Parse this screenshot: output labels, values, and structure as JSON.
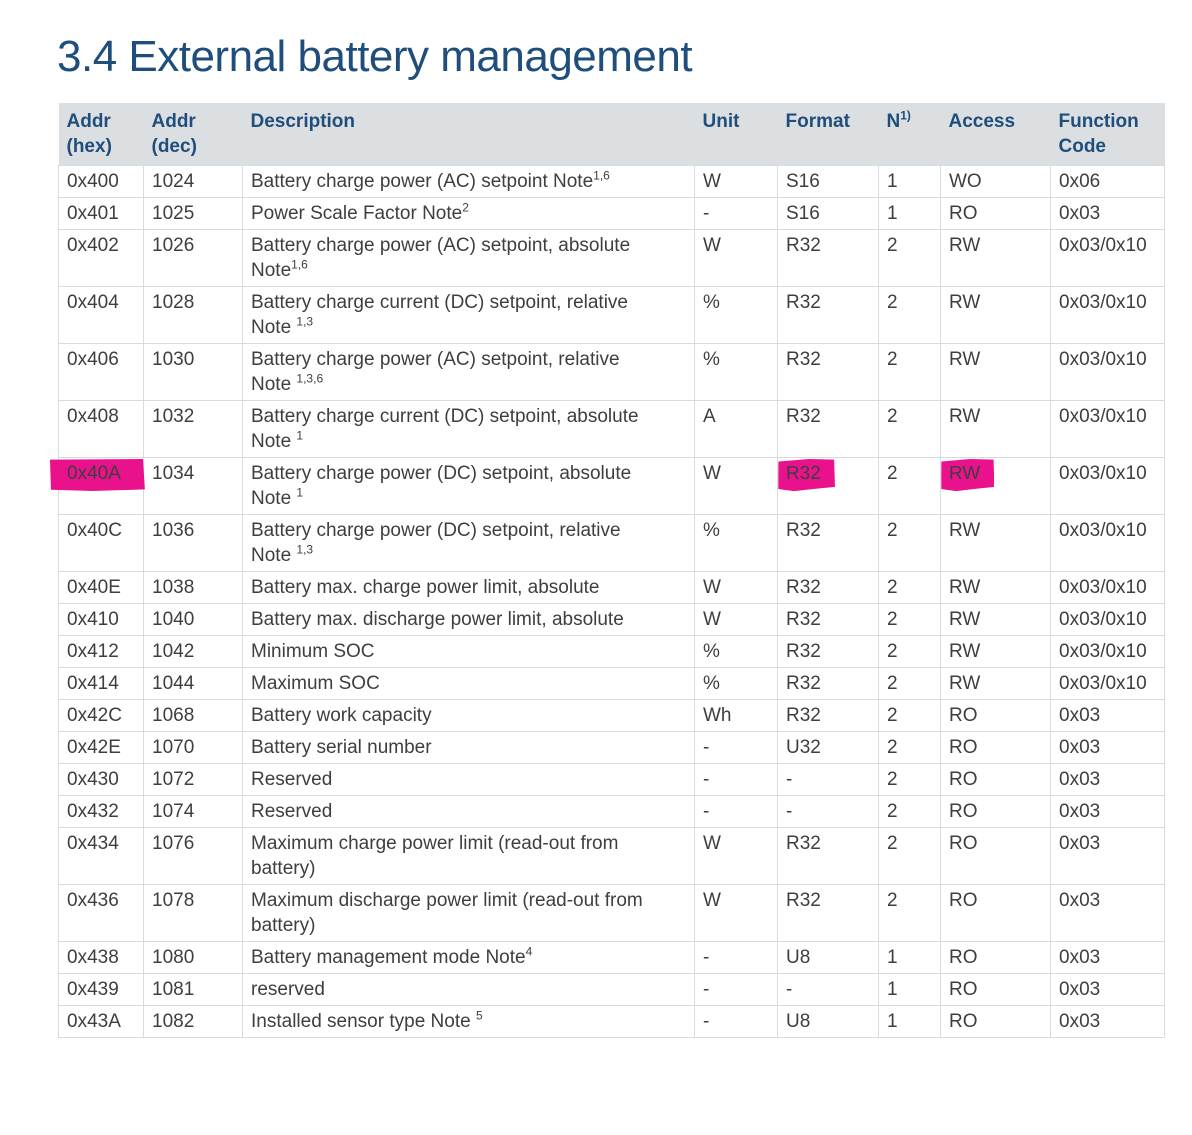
{
  "section": {
    "number_and_title": "3.4 External battery management"
  },
  "colors": {
    "accent_blue": "#1f4e7c",
    "header_background": "#dcdfe2",
    "body_text": "#3e3e3e",
    "table_border": "#d9dadc",
    "marker_highlight": "#ea128c"
  },
  "table": {
    "highlight_color": "#ea128c",
    "columns": [
      {
        "id": "addr-hex",
        "label": "Addr\n(hex)"
      },
      {
        "id": "addr-dec",
        "label": "Addr\n(dec)"
      },
      {
        "id": "description",
        "label": "Description"
      },
      {
        "id": "unit",
        "label": "Unit"
      },
      {
        "id": "format",
        "label": "Format"
      },
      {
        "id": "n",
        "label": "N",
        "sup": "1)"
      },
      {
        "id": "access",
        "label": "Access"
      },
      {
        "id": "function-code",
        "label": "Function\nCode"
      }
    ],
    "rows": [
      {
        "hex": "0x400",
        "dec": "1024",
        "d1": "Battery charge power (AC) setpoint Note",
        "d1sup": "1,6",
        "unit": "W",
        "format": "S16",
        "n": "1",
        "access": "WO",
        "fc": "0x06"
      },
      {
        "hex": "0x401",
        "dec": "1025",
        "d1": "Power Scale Factor Note",
        "d1sup": "2",
        "unit": "-",
        "format": "S16",
        "n": "1",
        "access": "RO",
        "fc": "0x03"
      },
      {
        "hex": "0x402",
        "dec": "1026",
        "d1": "Battery charge power (AC) setpoint, absolute",
        "d2": "Note",
        "d2sup": "1,6",
        "unit": "W",
        "format": "R32",
        "n": "2",
        "access": "RW",
        "fc": "0x03/0x10"
      },
      {
        "hex": "0x404",
        "dec": "1028",
        "d1": "Battery charge current (DC) setpoint, relative",
        "d2": "Note ",
        "d2sup": "1,3",
        "unit": "%",
        "format": "R32",
        "n": "2",
        "access": "RW",
        "fc": "0x03/0x10"
      },
      {
        "hex": "0x406",
        "dec": "1030",
        "d1": "Battery charge power (AC) setpoint, relative",
        "d2": "Note ",
        "d2sup": "1,3,6",
        "unit": "%",
        "format": "R32",
        "n": "2",
        "access": "RW",
        "fc": "0x03/0x10"
      },
      {
        "hex": "0x408",
        "dec": "1032",
        "d1": "Battery charge current (DC) setpoint, absolute",
        "d2": "Note ",
        "d2sup": "1",
        "unit": "A",
        "format": "R32",
        "n": "2",
        "access": "RW",
        "fc": "0x03/0x10"
      },
      {
        "hex": "0x40A",
        "dec": "1034",
        "d1": "Battery charge power (DC) setpoint, absolute",
        "d2": "Note ",
        "d2sup": "1",
        "unit": "W",
        "format": "R32",
        "n": "2",
        "access": "RW",
        "fc": "0x03/0x10",
        "highlight": [
          "hex",
          "format",
          "access"
        ]
      },
      {
        "hex": "0x40C",
        "dec": "1036",
        "d1": "Battery charge power (DC) setpoint, relative",
        "d2": "Note ",
        "d2sup": "1,3",
        "unit": "%",
        "format": "R32",
        "n": "2",
        "access": "RW",
        "fc": "0x03/0x10"
      },
      {
        "hex": "0x40E",
        "dec": "1038",
        "d1": "Battery max. charge power limit, absolute",
        "unit": "W",
        "format": "R32",
        "n": "2",
        "access": "RW",
        "fc": "0x03/0x10"
      },
      {
        "hex": "0x410",
        "dec": "1040",
        "d1": "Battery max. discharge power limit, absolute",
        "unit": "W",
        "format": "R32",
        "n": "2",
        "access": "RW",
        "fc": "0x03/0x10"
      },
      {
        "hex": "0x412",
        "dec": "1042",
        "d1": "Minimum SOC",
        "unit": "%",
        "format": "R32",
        "n": "2",
        "access": "RW",
        "fc": "0x03/0x10"
      },
      {
        "hex": "0x414",
        "dec": "1044",
        "d1": "Maximum SOC",
        "unit": "%",
        "format": "R32",
        "n": "2",
        "access": "RW",
        "fc": "0x03/0x10"
      },
      {
        "hex": "0x42C",
        "dec": "1068",
        "d1": "Battery work capacity",
        "unit": "Wh",
        "format": "R32",
        "n": "2",
        "access": "RO",
        "fc": "0x03"
      },
      {
        "hex": "0x42E",
        "dec": "1070",
        "d1": "Battery serial number",
        "unit": "-",
        "format": "U32",
        "n": "2",
        "access": "RO",
        "fc": "0x03"
      },
      {
        "hex": "0x430",
        "dec": "1072",
        "d1": "Reserved",
        "unit": "-",
        "format": "-",
        "n": "2",
        "access": "RO",
        "fc": "0x03"
      },
      {
        "hex": "0x432",
        "dec": "1074",
        "d1": "Reserved",
        "unit": "-",
        "format": "-",
        "n": "2",
        "access": "RO",
        "fc": "0x03"
      },
      {
        "hex": "0x434",
        "dec": "1076",
        "d1": "Maximum charge power limit (read-out from",
        "d2": "battery)",
        "unit": "W",
        "format": "R32",
        "n": "2",
        "access": "RO",
        "fc": "0x03"
      },
      {
        "hex": "0x436",
        "dec": "1078",
        "d1": "Maximum discharge power limit (read-out from",
        "d2": "battery)",
        "unit": "W",
        "format": "R32",
        "n": "2",
        "access": "RO",
        "fc": "0x03"
      },
      {
        "hex": "0x438",
        "dec": "1080",
        "d1": "Battery management mode Note",
        "d1sup": "4",
        "unit": "-",
        "format": "U8",
        "n": "1",
        "access": "RO",
        "fc": "0x03"
      },
      {
        "hex": "0x439",
        "dec": "1081",
        "d1": "reserved",
        "unit": "-",
        "format": "-",
        "n": "1",
        "access": "RO",
        "fc": "0x03"
      },
      {
        "hex": "0x43A",
        "dec": "1082",
        "d1": "Installed sensor type Note ",
        "d1sup": "5",
        "unit": "-",
        "format": "U8",
        "n": "1",
        "access": "RO",
        "fc": "0x03"
      }
    ]
  }
}
